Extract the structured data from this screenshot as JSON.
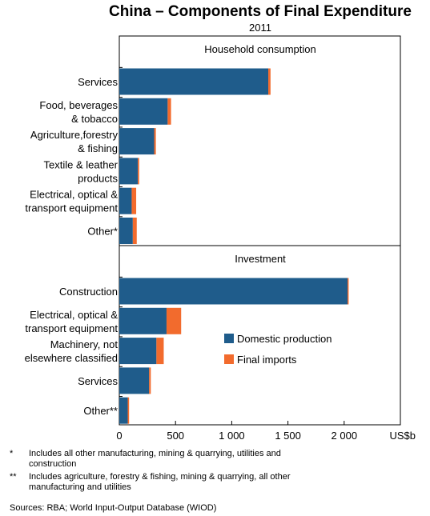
{
  "chart_data": {
    "type": "bar",
    "orientation": "horizontal",
    "stacked": true,
    "title": "China – Components of Final Expenditure",
    "subtitle": "2011",
    "unit_label": "US$b",
    "xlim": [
      0,
      2500
    ],
    "x_ticks": [
      {
        "value": 0,
        "label": "0"
      },
      {
        "value": 500,
        "label": "500"
      },
      {
        "value": 1000,
        "label": "1 000"
      },
      {
        "value": 1500,
        "label": "1 500"
      },
      {
        "value": 2000,
        "label": "2 000"
      }
    ],
    "series_names": [
      "Domestic production",
      "Final imports"
    ],
    "colors": {
      "domestic": "#1F5C8B",
      "imports": "#F26B2D"
    },
    "panels": [
      {
        "title": "Household consumption",
        "categories": [
          {
            "label": [
              "Services"
            ],
            "domestic": 1325,
            "imports": 20
          },
          {
            "label": [
              "Food, beverages",
              "& tobacco"
            ],
            "domestic": 430,
            "imports": 30
          },
          {
            "label": [
              "Agriculture,forestry",
              "& fishing"
            ],
            "domestic": 310,
            "imports": 15
          },
          {
            "label": [
              "Textile & leather",
              "products"
            ],
            "domestic": 165,
            "imports": 12
          },
          {
            "label": [
              "Electrical, optical &",
              "transport equipment"
            ],
            "domestic": 110,
            "imports": 40
          },
          {
            "label": [
              "Other*"
            ],
            "domestic": 120,
            "imports": 35
          }
        ]
      },
      {
        "title": "Investment",
        "categories": [
          {
            "label": [
              "Construction"
            ],
            "domestic": 2030,
            "imports": 10
          },
          {
            "label": [
              "Electrical, optical &",
              "transport equipment"
            ],
            "domestic": 420,
            "imports": 130
          },
          {
            "label": [
              "Machinery, not",
              "elsewhere classified"
            ],
            "domestic": 330,
            "imports": 65
          },
          {
            "label": [
              "Services"
            ],
            "domestic": 265,
            "imports": 15
          },
          {
            "label": [
              "Other**"
            ],
            "domestic": 75,
            "imports": 12
          }
        ]
      }
    ]
  },
  "notes": [
    {
      "mark": "*",
      "text": "Includes all other manufacturing, mining & quarrying, utilities and construction"
    },
    {
      "mark": "**",
      "text": "Includes agriculture, forestry & fishing, mining & quarrying, all other manufacturing and utilities"
    }
  ],
  "sources": "Sources:   RBA; World Input-Output Database (WIOD)"
}
